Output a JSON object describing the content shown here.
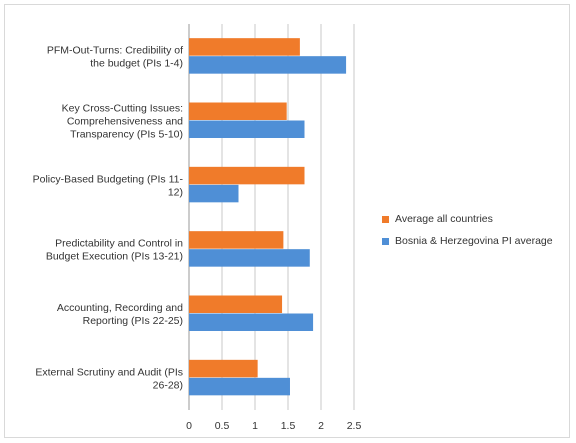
{
  "chart_data": {
    "type": "bar",
    "orientation": "horizontal",
    "categories": [
      "PFM-Out-Turns: Credibility of the budget (PIs 1-4)",
      "Key Cross-Cutting Issues: Comprehensiveness and Transparency (PIs 5-10)",
      "Policy-Based Budgeting (PIs 11-12)",
      "Predictability and Control in Budget Execution (PIs 13-21)",
      "Accounting, Recording and Reporting (PIs 22-25)",
      "External Scrutiny and Audit (PIs 26-28)"
    ],
    "category_lines": [
      [
        "PFM-Out-Turns: Credibility of",
        "the budget (PIs 1-4)"
      ],
      [
        "Key Cross-Cutting Issues:",
        "Comprehensiveness and",
        "Transparency (PIs 5-10)"
      ],
      [
        "Policy-Based Budgeting (PIs 11-",
        "12)"
      ],
      [
        "Predictability and Control in",
        "Budget Execution (PIs 13-21)"
      ],
      [
        "Accounting, Recording and",
        "Reporting (PIs 22-25)"
      ],
      [
        "External Scrutiny and Audit (PIs",
        "26-28)"
      ]
    ],
    "series": [
      {
        "name": "Average all countries",
        "color": "#f07b2a",
        "values": [
          1.68,
          1.48,
          1.75,
          1.43,
          1.41,
          1.04
        ]
      },
      {
        "name": "Bosnia & Herzegovina PI average",
        "color": "#4f8fd6",
        "values": [
          2.38,
          1.75,
          0.75,
          1.83,
          1.88,
          1.53
        ]
      }
    ],
    "xlim": [
      0,
      2.5
    ],
    "x_ticks": [
      "0",
      "0.5",
      "1",
      "1.5",
      "2",
      "2.5"
    ],
    "grid": true,
    "legend_position": "right",
    "title": "",
    "xlabel": "",
    "ylabel": ""
  }
}
